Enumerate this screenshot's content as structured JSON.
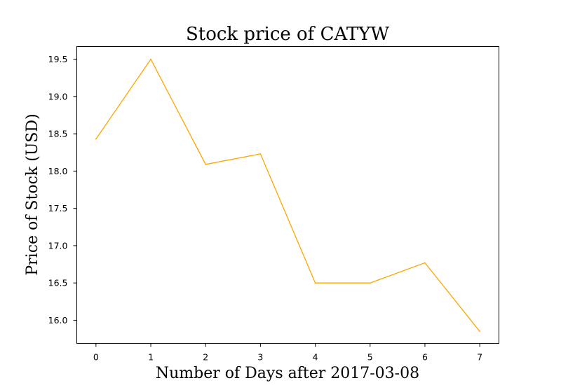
{
  "chart_data": {
    "type": "line",
    "title": "Stock price of CATYW",
    "xlabel": "Number of Days after 2017-03-08",
    "ylabel": "Price of Stock (USD)",
    "x": [
      0,
      1,
      2,
      3,
      4,
      5,
      6,
      7
    ],
    "xticks": [
      "0",
      "1",
      "2",
      "3",
      "4",
      "5",
      "6",
      "7"
    ],
    "yticks": [
      "16.0",
      "16.5",
      "17.0",
      "17.5",
      "18.0",
      "18.5",
      "19.0",
      "19.5"
    ],
    "ytick_values": [
      16.0,
      16.5,
      17.0,
      17.5,
      18.0,
      18.5,
      19.0,
      19.5
    ],
    "xlim": [
      -0.35,
      7.35
    ],
    "ylim": [
      15.69,
      19.67
    ],
    "grid": false,
    "series": [
      {
        "color": "#FFA500",
        "values": [
          18.43,
          19.5,
          18.09,
          18.23,
          16.5,
          16.5,
          16.77,
          15.85
        ]
      }
    ]
  }
}
